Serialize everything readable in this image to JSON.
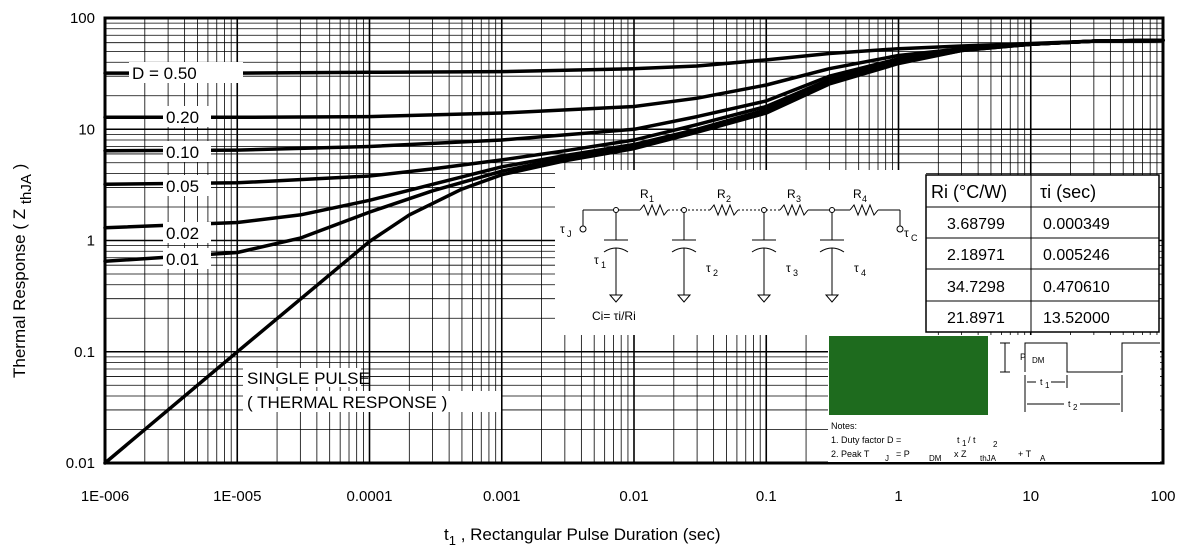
{
  "chart_data": {
    "type": "line",
    "title": "",
    "xlabel": "t1 , Rectangular Pulse Duration (sec)",
    "xlabel_main": "t",
    "xlabel_sub": "1",
    "xlabel_rest": " , Rectangular Pulse Duration (sec)",
    "ylabel": "Thermal Response ( Z thJA )",
    "ylabel_main": "Thermal Response ( Z ",
    "ylabel_sub": "thJA",
    "ylabel_end": " )",
    "xscale": "log",
    "yscale": "log",
    "xlim": [
      1e-06,
      100
    ],
    "ylim": [
      0.01,
      100
    ],
    "grid": true,
    "x_ticks": [
      {
        "value": 1e-06,
        "label": "1E-006"
      },
      {
        "value": 1e-05,
        "label": "1E-005"
      },
      {
        "value": 0.0001,
        "label": "0.0001"
      },
      {
        "value": 0.001,
        "label": "0.001"
      },
      {
        "value": 0.01,
        "label": "0.01"
      },
      {
        "value": 0.1,
        "label": "0.1"
      },
      {
        "value": 1,
        "label": "1"
      },
      {
        "value": 10,
        "label": "10"
      },
      {
        "value": 100,
        "label": "100"
      }
    ],
    "y_ticks": [
      {
        "value": 0.01,
        "label": "0.01"
      },
      {
        "value": 0.1,
        "label": "0.1"
      },
      {
        "value": 1,
        "label": "1"
      },
      {
        "value": 10,
        "label": "10"
      },
      {
        "value": 100,
        "label": "100"
      }
    ],
    "series": [
      {
        "name": "D = 0.50",
        "x": [
          1e-06,
          1e-05,
          0.0001,
          0.001,
          0.01,
          0.03,
          0.1,
          0.3,
          1,
          3,
          10,
          30,
          100
        ],
        "y": [
          32,
          32,
          32.5,
          33,
          35,
          37,
          42,
          48,
          53,
          56,
          59,
          62,
          63
        ]
      },
      {
        "name": "0.20",
        "x": [
          1e-06,
          1e-05,
          0.0001,
          0.001,
          0.01,
          0.03,
          0.1,
          0.3,
          1,
          3,
          10,
          30,
          100
        ],
        "y": [
          12.8,
          12.8,
          13,
          14,
          16,
          19,
          25,
          35,
          46,
          53,
          58,
          62,
          63
        ]
      },
      {
        "name": "0.10",
        "x": [
          1e-06,
          1e-05,
          0.0001,
          0.001,
          0.01,
          0.03,
          0.1,
          0.3,
          1,
          3,
          10,
          30,
          100
        ],
        "y": [
          6.4,
          6.5,
          7,
          8,
          10,
          13,
          18,
          30,
          43,
          52,
          58,
          62,
          63
        ]
      },
      {
        "name": "0.05",
        "x": [
          1e-06,
          1e-05,
          0.0001,
          0.0003,
          0.001,
          0.003,
          0.01,
          0.03,
          0.1,
          0.3,
          1,
          3,
          10,
          30,
          100
        ],
        "y": [
          3.2,
          3.3,
          3.8,
          4.4,
          5.3,
          6.4,
          8,
          11,
          16,
          28,
          42,
          52,
          58,
          62,
          63
        ]
      },
      {
        "name": "0.02",
        "x": [
          1e-06,
          1e-05,
          3e-05,
          0.0001,
          0.0003,
          0.001,
          0.003,
          0.01,
          0.03,
          0.1,
          0.3,
          1,
          3,
          10,
          30,
          100
        ],
        "y": [
          1.3,
          1.45,
          1.7,
          2.3,
          3.2,
          4.6,
          5.8,
          7.3,
          10,
          15,
          27,
          41,
          52,
          58,
          62,
          63
        ]
      },
      {
        "name": "0.01",
        "x": [
          1e-06,
          1e-05,
          3e-05,
          0.0001,
          0.0003,
          0.001,
          0.003,
          0.01,
          0.03,
          0.1,
          0.3,
          1,
          3,
          10,
          30,
          100
        ],
        "y": [
          0.65,
          0.78,
          1.05,
          1.8,
          2.8,
          4.2,
          5.5,
          7,
          9.7,
          14.5,
          26,
          40,
          51,
          58,
          62,
          63
        ]
      },
      {
        "name": "SINGLE PULSE ( THERMAL RESPONSE )",
        "x": [
          1e-06,
          1e-05,
          0.0001,
          0.0002,
          0.0005,
          0.001,
          0.003,
          0.01,
          0.03,
          0.1,
          0.3,
          1,
          3,
          10,
          30,
          100
        ],
        "y": [
          0.01,
          0.1,
          0.98,
          1.7,
          2.9,
          3.9,
          5.2,
          6.7,
          9.4,
          14,
          25.5,
          39,
          51,
          58,
          62,
          63
        ]
      }
    ],
    "curve_labels": [
      "D = 0.50",
      "0.20",
      "0.10",
      "0.05",
      "0.02",
      "0.01"
    ],
    "single_pulse_label_1": "SINGLE PULSE",
    "single_pulse_label_2": "( THERMAL RESPONSE )"
  },
  "rc_network": {
    "r_labels": [
      "R",
      "R",
      "R",
      "R"
    ],
    "r_subs": [
      "1",
      "2",
      "3",
      "4"
    ],
    "tau_labels": [
      "τ",
      "τ",
      "τ",
      "τ"
    ],
    "tau_subs": [
      "1",
      "2",
      "3",
      "4"
    ],
    "tau_j": "τ",
    "tau_j_sub": "J",
    "tau_c": "τ",
    "tau_c_sub": "C",
    "ci_formula": "Ci= τi/Ri"
  },
  "rc_table": {
    "headers": [
      "Ri (°C/W)",
      "τi (sec)"
    ],
    "rows": [
      [
        "3.68799",
        "0.000349"
      ],
      [
        "2.18971",
        "0.005246"
      ],
      [
        "34.7298",
        "0.470610"
      ],
      [
        "21.8971",
        "13.52000"
      ]
    ]
  },
  "notes": {
    "swatch_color": "#1e6b1e",
    "p_dm": "P",
    "p_dm_sub": "DM",
    "t1": "t",
    "t1_sub": "1",
    "t2": "t",
    "t2_sub": "2",
    "title": "Notes:",
    "line1_a": "1. Duty factor D =",
    "line1_b": "t",
    "line1_b_sub": "1",
    "line1_c": "/ t",
    "line1_c_sub": "2",
    "line2_a": "2. Peak T",
    "line2_sub1": "J",
    "line2_b": "= P",
    "line2_sub2": "DM",
    "line2_c": "x Z",
    "line2_sub3": "thJA",
    "line2_d": "+ T",
    "line2_sub4": "A"
  }
}
